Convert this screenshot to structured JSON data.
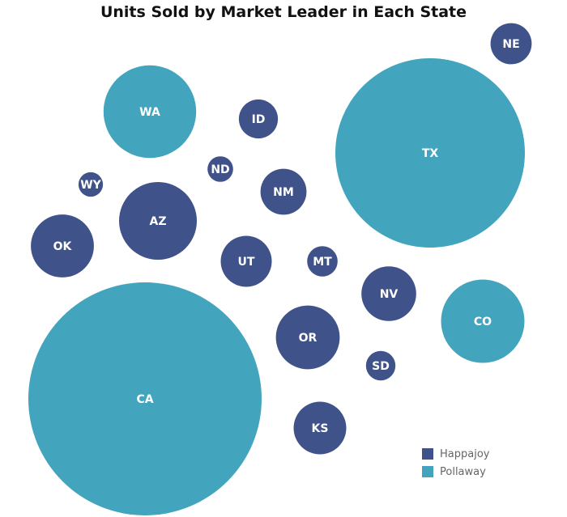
{
  "chart_data": {
    "type": "bubble",
    "title": "Units Sold by Market Leader in Each State",
    "legend_position": "bottom-right",
    "series": [
      {
        "name": "Happajoy",
        "color": "#3f5289"
      },
      {
        "name": "Pollaway",
        "color": "#42a5bd"
      }
    ],
    "bubbles": [
      {
        "label": "CA",
        "series": "Pollaway",
        "value": 1000
      },
      {
        "label": "TX",
        "series": "Pollaway",
        "value": 660
      },
      {
        "label": "CO",
        "series": "Pollaway",
        "value": 128
      },
      {
        "label": "WA",
        "series": "Pollaway",
        "value": 158
      },
      {
        "label": "AZ",
        "series": "Happajoy",
        "value": 111
      },
      {
        "label": "OK",
        "series": "Happajoy",
        "value": 73
      },
      {
        "label": "OR",
        "series": "Happajoy",
        "value": 75
      },
      {
        "label": "UT",
        "series": "Happajoy",
        "value": 48
      },
      {
        "label": "NV",
        "series": "Happajoy",
        "value": 55
      },
      {
        "label": "KS",
        "series": "Happajoy",
        "value": 51
      },
      {
        "label": "NM",
        "series": "Happajoy",
        "value": 39
      },
      {
        "label": "ID",
        "series": "Happajoy",
        "value": 28
      },
      {
        "label": "NE",
        "series": "Happajoy",
        "value": 31
      },
      {
        "label": "MT",
        "series": "Happajoy",
        "value": 17
      },
      {
        "label": "SD",
        "series": "Happajoy",
        "value": 16
      },
      {
        "label": "ND",
        "series": "Happajoy",
        "value": 12
      },
      {
        "label": "WY",
        "series": "Happajoy",
        "value": 11
      }
    ]
  }
}
